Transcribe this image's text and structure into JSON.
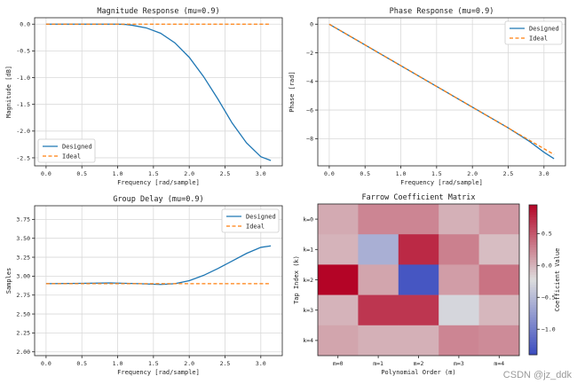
{
  "watermark": "CSDN @jz_ddk",
  "chart_data": [
    {
      "type": "line",
      "title": "Magnitude Response (mu=0.9)",
      "xlabel": "Frequency [rad/sample]",
      "ylabel": "Magnitude [dB]",
      "xlim": [
        -0.16,
        3.3
      ],
      "ylim": [
        -2.65,
        0.12
      ],
      "xticks": [
        0.0,
        0.5,
        1.0,
        1.5,
        2.0,
        2.5,
        3.0
      ],
      "yticks": [
        0.0,
        -0.5,
        -1.0,
        -1.5,
        -2.0,
        -2.5
      ],
      "ytick_labels": [
        "0.0",
        "-0.5",
        "-1.0",
        "-1.5",
        "-2.0",
        "-2.5"
      ],
      "grid": true,
      "legend_position": "lower-left",
      "series": [
        {
          "name": "Designed",
          "color": "#1f77b4",
          "dashed": false,
          "x": [
            0.0,
            0.5,
            1.0,
            1.1,
            1.2,
            1.4,
            1.6,
            1.8,
            2.0,
            2.2,
            2.4,
            2.6,
            2.8,
            3.0,
            3.14
          ],
          "y": [
            0.0,
            0.0,
            0.0,
            -0.005,
            -0.02,
            -0.07,
            -0.17,
            -0.35,
            -0.62,
            -0.98,
            -1.4,
            -1.85,
            -2.22,
            -2.48,
            -2.55
          ]
        },
        {
          "name": "Ideal",
          "color": "#ff7f0e",
          "dashed": true,
          "x": [
            0.0,
            3.14
          ],
          "y": [
            0.0,
            0.0
          ]
        }
      ]
    },
    {
      "type": "line",
      "title": "Phase Response (mu=0.9)",
      "xlabel": "Frequency [rad/sample]",
      "ylabel": "Phase [rad]",
      "xlim": [
        -0.16,
        3.3
      ],
      "ylim": [
        -9.9,
        0.45
      ],
      "xticks": [
        0.0,
        0.5,
        1.0,
        1.5,
        2.0,
        2.5,
        3.0
      ],
      "yticks": [
        0,
        -2,
        -4,
        -6,
        -8
      ],
      "ytick_labels": [
        "0",
        "−2",
        "−4",
        "−6",
        "−8"
      ],
      "grid": true,
      "legend_position": "top-right",
      "series": [
        {
          "name": "Designed",
          "color": "#1f77b4",
          "dashed": false,
          "x": [
            0.0,
            1.0,
            2.0,
            2.5,
            2.8,
            3.0,
            3.14
          ],
          "y": [
            0.0,
            -2.9,
            -5.8,
            -7.25,
            -8.2,
            -8.95,
            -9.4
          ]
        },
        {
          "name": "Ideal",
          "color": "#ff7f0e",
          "dashed": true,
          "x": [
            0.0,
            3.14
          ],
          "y": [
            0.0,
            -9.11
          ]
        }
      ]
    },
    {
      "type": "line",
      "title": "Group Delay (mu=0.9)",
      "xlabel": "Frequency [rad/sample]",
      "ylabel": "Samples",
      "xlim": [
        -0.16,
        3.3
      ],
      "ylim": [
        1.95,
        3.93
      ],
      "xticks": [
        0.0,
        0.5,
        1.0,
        1.5,
        2.0,
        2.5,
        3.0
      ],
      "yticks": [
        2.0,
        2.25,
        2.5,
        2.75,
        3.0,
        3.25,
        3.5,
        3.75
      ],
      "ytick_labels": [
        "2.00",
        "2.25",
        "2.50",
        "2.75",
        "3.00",
        "3.25",
        "3.50",
        "3.75"
      ],
      "grid": true,
      "legend_position": "top-right",
      "series": [
        {
          "name": "Designed",
          "color": "#1f77b4",
          "dashed": false,
          "x": [
            0.0,
            0.5,
            0.9,
            1.3,
            1.6,
            1.8,
            2.0,
            2.2,
            2.4,
            2.6,
            2.8,
            3.0,
            3.14
          ],
          "y": [
            2.9,
            2.905,
            2.91,
            2.9,
            2.89,
            2.9,
            2.94,
            3.01,
            3.1,
            3.2,
            3.3,
            3.38,
            3.4
          ]
        },
        {
          "name": "Ideal",
          "color": "#ff7f0e",
          "dashed": true,
          "x": [
            0.0,
            3.14
          ],
          "y": [
            2.9,
            2.9
          ]
        }
      ]
    },
    {
      "type": "heatmap",
      "title": "Farrow Coefficient Matrix",
      "xlabel": "Polynomial Order (m)",
      "ylabel": "Tap Index (k)",
      "x_categories": [
        "m=0",
        "m=1",
        "m=2",
        "m=3",
        "m=4"
      ],
      "y_categories": [
        "k=0",
        "k=1",
        "k=2",
        "k=3",
        "k=4"
      ],
      "values": [
        [
          0.05,
          0.25,
          0.25,
          0.02,
          0.15
        ],
        [
          0.0,
          -0.6,
          0.75,
          0.28,
          -0.05
        ],
        [
          0.95,
          0.08,
          -1.32,
          0.12,
          0.35
        ],
        [
          0.0,
          0.68,
          0.68,
          -0.28,
          -0.02
        ],
        [
          0.08,
          0.02,
          0.02,
          0.25,
          0.22
        ]
      ],
      "colormap": "coolwarm",
      "colorbar": {
        "label": "Coefficient Value",
        "range": [
          -1.4,
          0.95
        ],
        "ticks": [
          0.5,
          0.0,
          -0.5,
          -1.0
        ],
        "tick_labels": [
          "0.5",
          "0.0",
          "−0.5",
          "−1.0"
        ]
      }
    }
  ]
}
